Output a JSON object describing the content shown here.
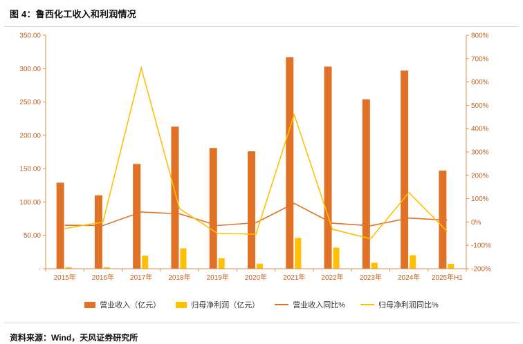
{
  "figure": {
    "title": "图 4：鲁西化工收入和利润情况",
    "source": "资料来源：Wind，天风证券研究所"
  },
  "colors": {
    "revenue_bar": "#DF7226",
    "profit_bar": "#FFC000",
    "revenue_line": "#DF7226",
    "profit_line": "#FFC000",
    "axis": "#DF8B4E",
    "axis_text": "#C2611E"
  },
  "chart_data": {
    "type": "combo-bar-line",
    "title": "鲁西化工收入和利润情况",
    "categories": [
      "2015年",
      "2016年",
      "2017年",
      "2018年",
      "2019年",
      "2020年",
      "2021年",
      "2022年",
      "2023年",
      "2024年",
      "2025年H1"
    ],
    "series": [
      {
        "name": "营业收入（亿元）",
        "type": "bar",
        "axis": "left",
        "values": [
          129,
          110,
          157,
          213,
          181,
          176,
          317,
          303,
          254,
          297,
          147
        ]
      },
      {
        "name": "归母净利润（亿元）",
        "type": "bar",
        "axis": "left",
        "values": [
          2.3,
          2.2,
          19.5,
          30.6,
          15.5,
          7.5,
          46.2,
          31.7,
          8.9,
          20.2,
          7.3
        ]
      },
      {
        "name": "营业收入同比%",
        "type": "line",
        "axis": "right",
        "values": [
          -14,
          -15,
          43,
          35,
          -15,
          -3,
          80,
          -5,
          -16,
          17,
          8
        ]
      },
      {
        "name": "归母净利润同比%",
        "type": "line",
        "axis": "right",
        "values": [
          -28,
          0,
          660,
          57,
          -49,
          -52,
          460,
          -31,
          -72,
          126,
          -40
        ]
      }
    ],
    "left_axis": {
      "min": 0,
      "max": 350,
      "ticks": [
        "350.00",
        "300.00",
        "250.00",
        "200.00",
        "150.00",
        "100.00",
        "50.00",
        "-"
      ]
    },
    "right_axis": {
      "min": -200,
      "max": 800,
      "ticks": [
        "800%",
        "700%",
        "600%",
        "500%",
        "400%",
        "300%",
        "200%",
        "100%",
        "0%",
        "-100%",
        "-200%"
      ]
    },
    "grid": false,
    "legend_position": "bottom"
  }
}
